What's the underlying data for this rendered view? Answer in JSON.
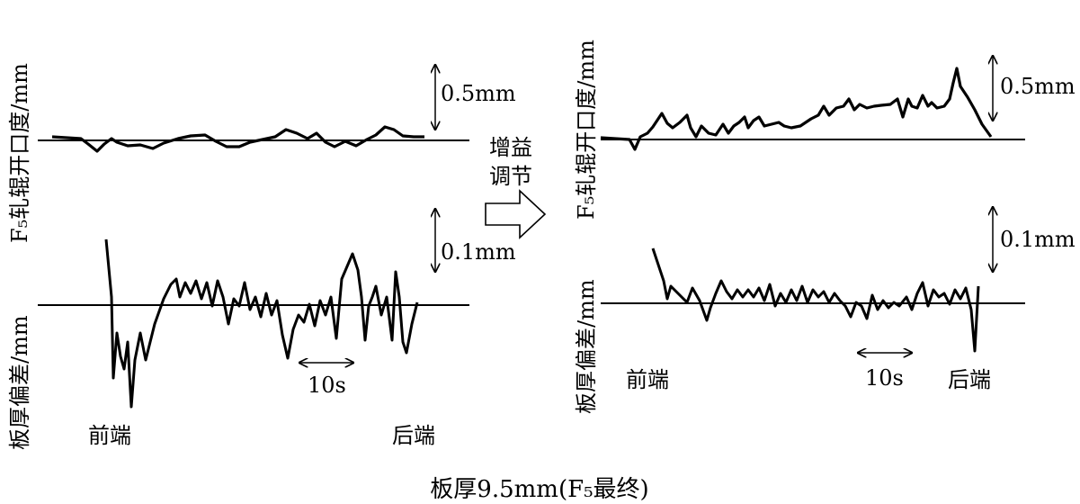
{
  "figure": {
    "caption": "板厚9.5mm(F₅最终)",
    "center_arrow_label": [
      "增益",
      "调节"
    ]
  },
  "panels": [
    {
      "id": "left",
      "gap_axis_label": "F₅轧辊开口度/mm",
      "thickness_axis_label": "板厚偏差/mm",
      "gap_scale_label": "0.5mm",
      "thickness_scale_label": "0.1mm",
      "time_scale_label": "10s",
      "front_end_label": "前端",
      "rear_end_label": "后端"
    },
    {
      "id": "right",
      "gap_axis_label": "F₅轧辊开口度/mm",
      "thickness_axis_label": "板厚偏差/mm",
      "gap_scale_label": "0.5mm",
      "thickness_scale_label": "0.1mm",
      "time_scale_label": "10s",
      "front_end_label": "前端",
      "rear_end_label": "后端"
    }
  ]
}
